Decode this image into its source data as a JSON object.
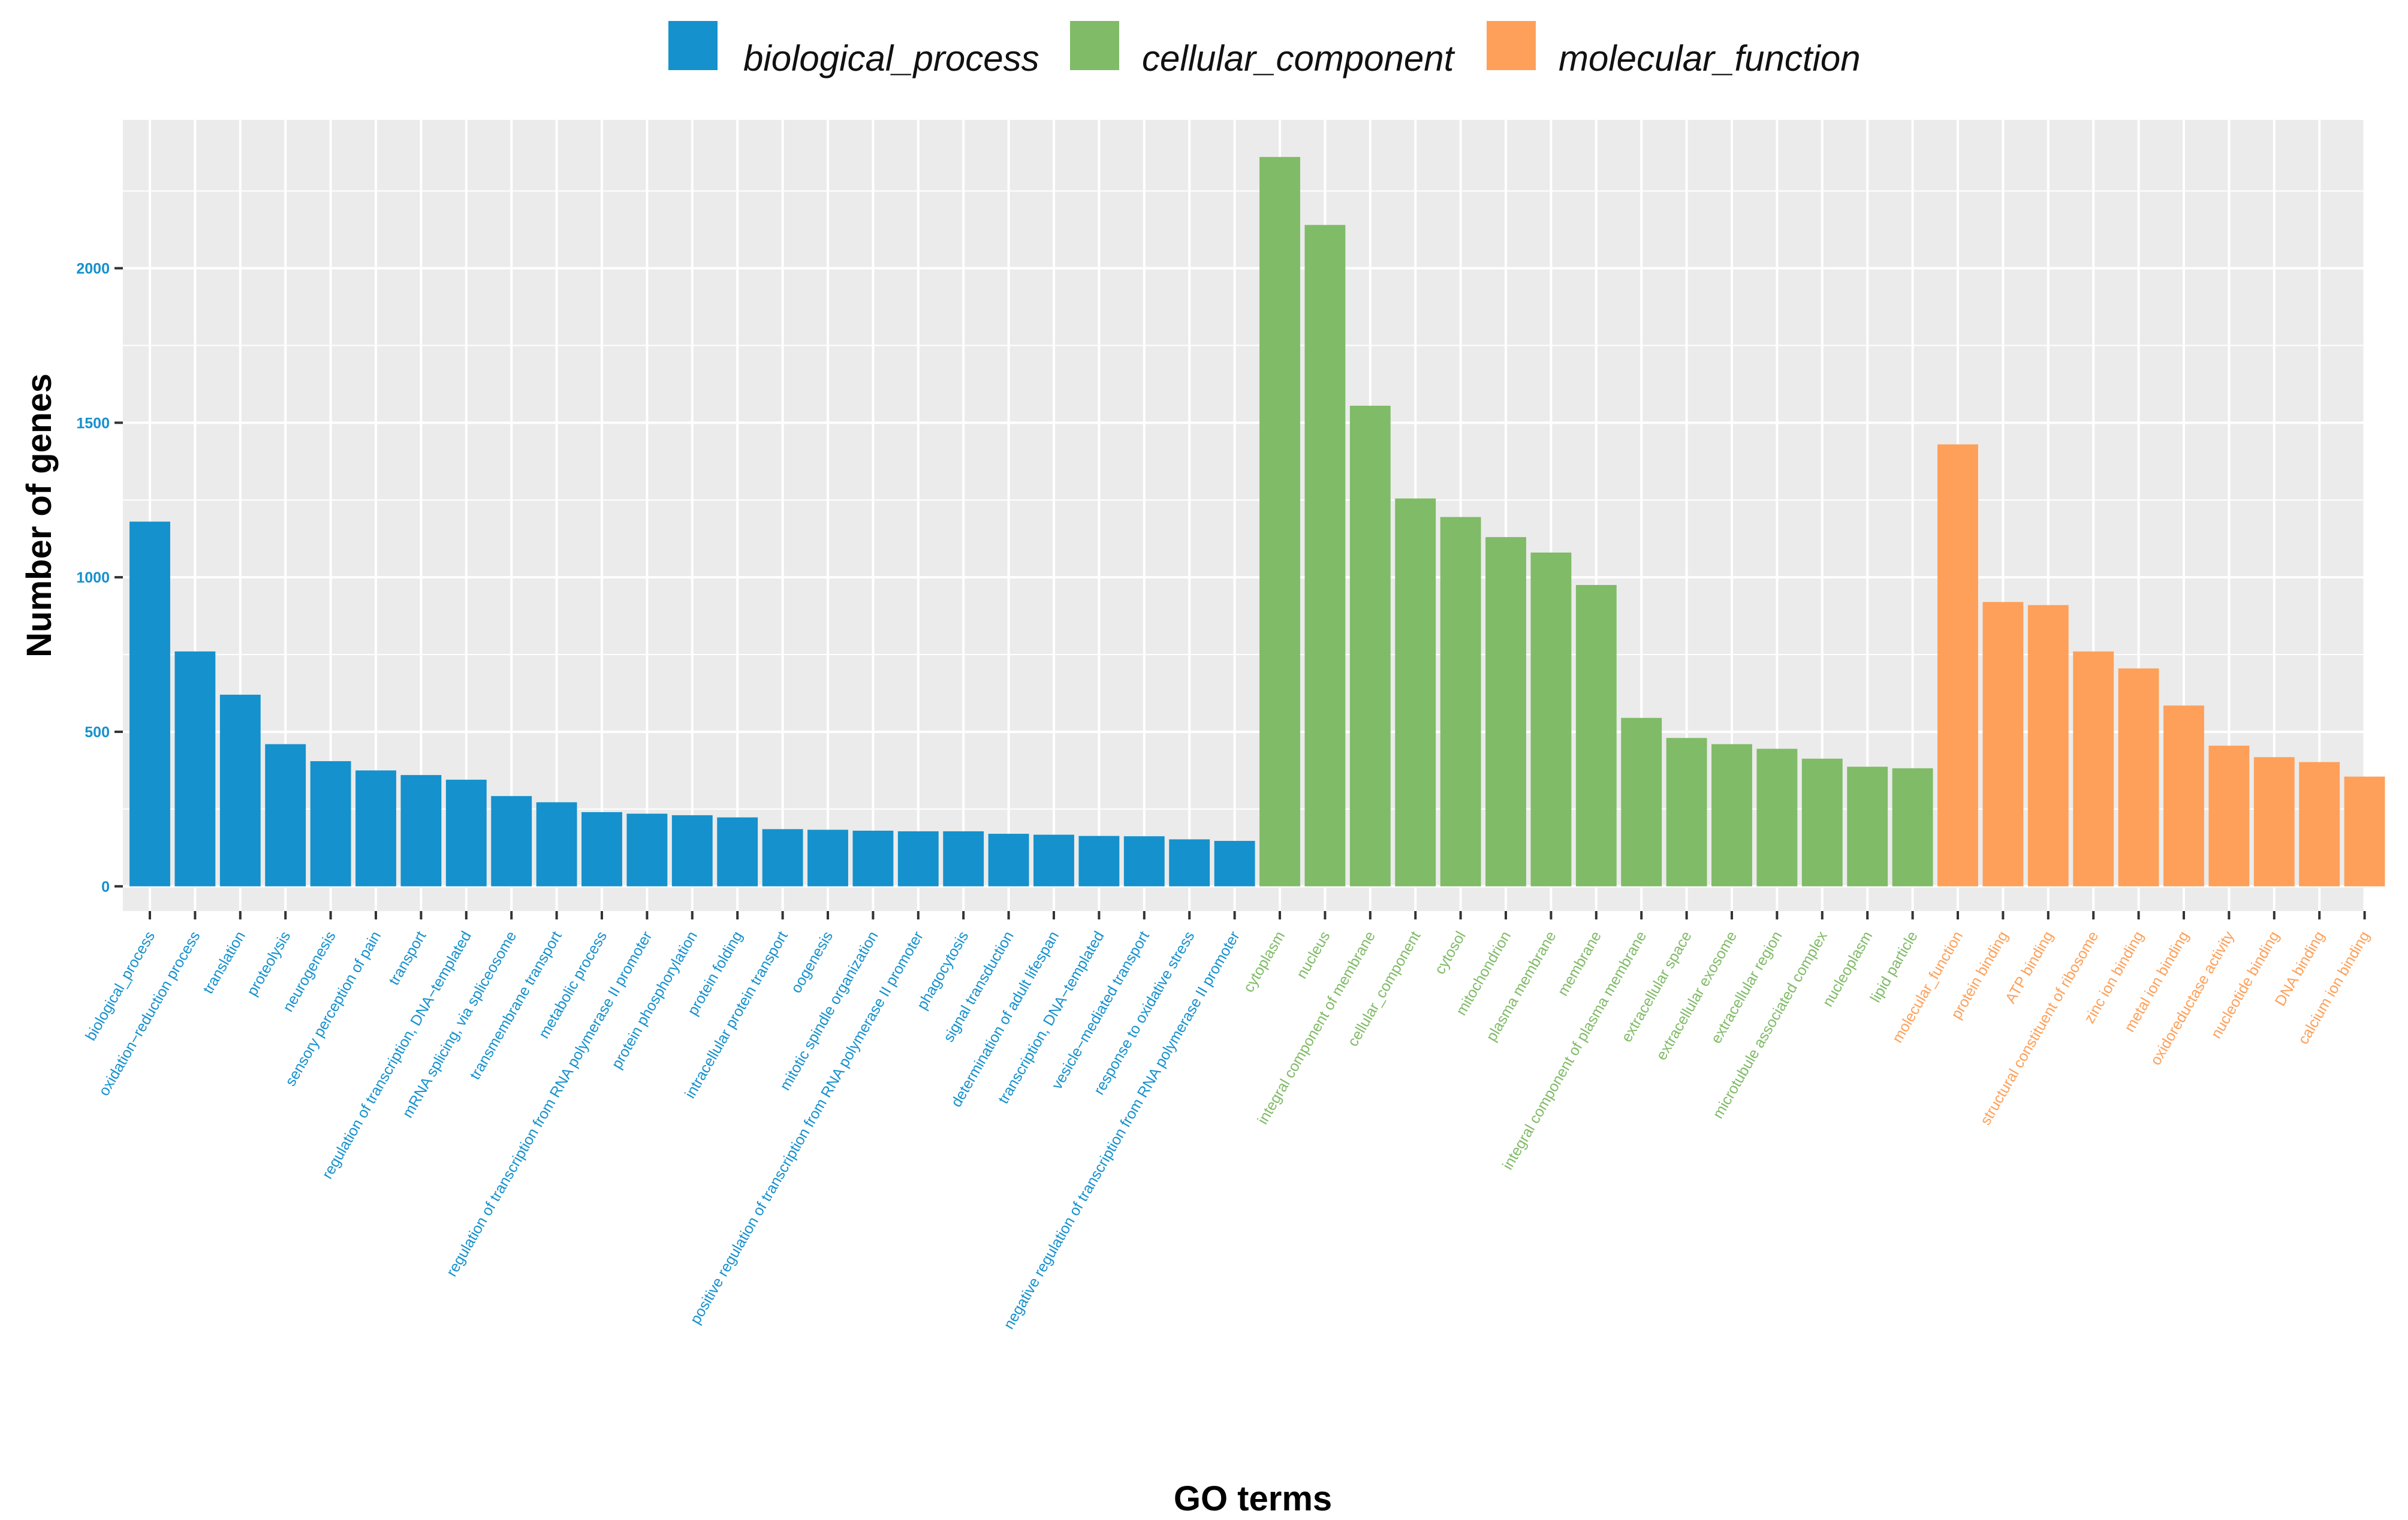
{
  "chart_data": {
    "type": "bar",
    "title": "",
    "xlabel": "GO terms",
    "ylabel": "Number of genes",
    "ylim": [
      -80,
      2480
    ],
    "yticks": [
      0,
      500,
      1000,
      1500,
      2000
    ],
    "grid": true,
    "legend_position": "top",
    "groups": [
      {
        "name": "biological_process",
        "color": "#1591cd"
      },
      {
        "name": "cellular_component",
        "color": "#80bb67"
      },
      {
        "name": "molecular_function",
        "color": "#fea059"
      }
    ],
    "categories": [
      "biological_process",
      "oxidation−reduction process",
      "translation",
      "proteolysis",
      "neurogenesis",
      "sensory perception of pain",
      "transport",
      "regulation of transcription, DNA−templated",
      "mRNA splicing, via spliceosome",
      "transmembrane transport",
      "metabolic process",
      "regulation of transcription from RNA polymerase II promoter",
      "protein phosphorylation",
      "protein folding",
      "intracellular protein transport",
      "oogenesis",
      "mitotic spindle organization",
      "positive regulation of transcription from RNA polymerase II promoter",
      "phagocytosis",
      "signal transduction",
      "determination of adult lifespan",
      "transcription, DNA−templated",
      "vesicle−mediated transport",
      "response to oxidative stress",
      "negative regulation of transcription from RNA polymerase II promoter",
      "cytoplasm",
      "nucleus",
      "integral component of membrane",
      "cellular_component",
      "cytosol",
      "mitochondrion",
      "plasma membrane",
      "membrane",
      "integral component of plasma membrane",
      "extracellular space",
      "extracellular exosome",
      "extracellular region",
      "microtubule associated complex",
      "nucleoplasm",
      "lipid particle",
      "molecular_function",
      "protein binding",
      "ATP binding",
      "structural constituent of ribosome",
      "zinc ion binding",
      "metal ion binding",
      "oxidoreductase activity",
      "nucleotide binding",
      "DNA binding",
      "calcium ion binding"
    ],
    "category_group": [
      "biological_process",
      "biological_process",
      "biological_process",
      "biological_process",
      "biological_process",
      "biological_process",
      "biological_process",
      "biological_process",
      "biological_process",
      "biological_process",
      "biological_process",
      "biological_process",
      "biological_process",
      "biological_process",
      "biological_process",
      "biological_process",
      "biological_process",
      "biological_process",
      "biological_process",
      "biological_process",
      "biological_process",
      "biological_process",
      "biological_process",
      "biological_process",
      "biological_process",
      "cellular_component",
      "cellular_component",
      "cellular_component",
      "cellular_component",
      "cellular_component",
      "cellular_component",
      "cellular_component",
      "cellular_component",
      "cellular_component",
      "cellular_component",
      "cellular_component",
      "cellular_component",
      "cellular_component",
      "cellular_component",
      "cellular_component",
      "molecular_function",
      "molecular_function",
      "molecular_function",
      "molecular_function",
      "molecular_function",
      "molecular_function",
      "molecular_function",
      "molecular_function",
      "molecular_function",
      "molecular_function"
    ],
    "values": [
      1180,
      760,
      620,
      460,
      405,
      375,
      360,
      345,
      292,
      272,
      240,
      235,
      230,
      223,
      185,
      183,
      180,
      178,
      178,
      170,
      167,
      163,
      162,
      152,
      147,
      2360,
      2140,
      1555,
      1255,
      1195,
      1130,
      1080,
      975,
      545,
      480,
      460,
      445,
      413,
      387,
      382,
      1430,
      920,
      910,
      760,
      705,
      585,
      455,
      418,
      402,
      355
    ]
  }
}
